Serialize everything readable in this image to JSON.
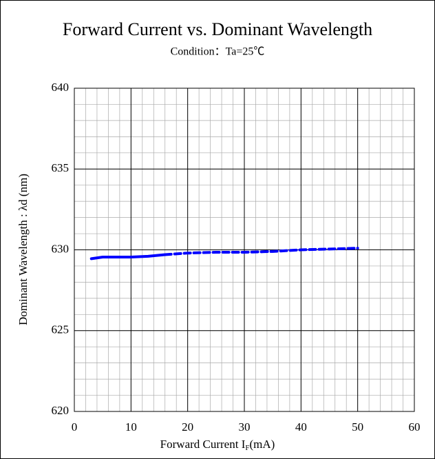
{
  "chart_data": {
    "type": "line",
    "title": "Forward Current vs. Dominant Wavelength",
    "subtitle": "Condition：Ta=25℃",
    "ylabel": "Dominant Wavelength : λd (nm)",
    "xlabel": [
      "Forward Current I",
      "F",
      "(mA)"
    ],
    "xlim": [
      0,
      60
    ],
    "xticks": [
      0,
      10,
      20,
      30,
      40,
      50,
      60
    ],
    "xminor": 2,
    "ylim": [
      620,
      640
    ],
    "yticks": [
      620,
      625,
      630,
      635,
      640
    ],
    "yminor": 1,
    "grid": true,
    "series": [
      {
        "color": "#0000ff",
        "style": "solid",
        "x": [
          3,
          5,
          8,
          10,
          13,
          16
        ],
        "values": [
          629.45,
          629.55,
          629.55,
          629.55,
          629.6,
          629.7
        ]
      },
      {
        "color": "#0000ff",
        "style": "dashed",
        "x": [
          16,
          20,
          25,
          30,
          35,
          40,
          45,
          50
        ],
        "values": [
          629.7,
          629.8,
          629.85,
          629.85,
          629.9,
          630.0,
          630.05,
          630.1
        ]
      }
    ]
  }
}
